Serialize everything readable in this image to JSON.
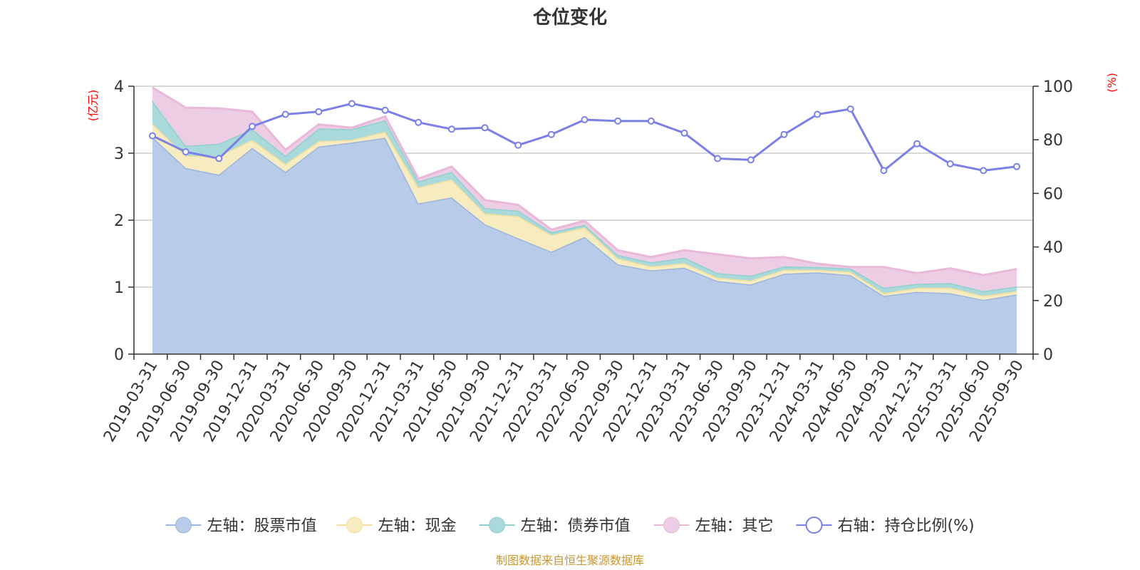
{
  "chart_data": {
    "type": "area",
    "title": "仓位变化",
    "source": "制图数据来自恒生聚源数据库",
    "left_axis": {
      "unit": "(亿元)",
      "ticks": [
        "0",
        "1",
        "2",
        "3",
        "4"
      ],
      "min": 0,
      "max": 4
    },
    "right_axis": {
      "unit": "(%)",
      "ticks": [
        "0",
        "20",
        "40",
        "60",
        "80",
        "100"
      ],
      "min": 0,
      "max": 100
    },
    "categories": [
      "2019-03-31",
      "2019-06-30",
      "2019-09-30",
      "2019-12-31",
      "2020-03-31",
      "2020-06-30",
      "2020-09-30",
      "2020-12-31",
      "2021-03-31",
      "2021-06-30",
      "2021-09-30",
      "2021-12-31",
      "2022-03-31",
      "2022-06-30",
      "2022-09-30",
      "2022-12-31",
      "2023-03-31",
      "2023-06-30",
      "2023-09-30",
      "2023-12-31",
      "2024-03-31",
      "2024-06-30",
      "2024-09-30",
      "2024-12-31",
      "2025-03-31",
      "2025-06-30",
      "2025-09-30"
    ],
    "series": [
      {
        "name": "左轴：股票市值",
        "axis": "left",
        "stack": true,
        "line_color": "#9bb5dd",
        "fill_color": "#b8cbe9",
        "values": [
          3.24,
          2.78,
          2.68,
          3.08,
          2.72,
          3.1,
          3.16,
          3.23,
          2.25,
          2.34,
          1.94,
          1.73,
          1.53,
          1.75,
          1.34,
          1.25,
          1.29,
          1.09,
          1.04,
          1.2,
          1.22,
          1.18,
          0.87,
          0.93,
          0.91,
          0.81,
          0.89
        ]
      },
      {
        "name": "左轴：现金",
        "axis": "left",
        "stack": true,
        "line_color": "#f2df9d",
        "fill_color": "#f7ecc0",
        "values": [
          0.2,
          0.18,
          0.28,
          0.12,
          0.12,
          0.08,
          0.04,
          0.09,
          0.24,
          0.27,
          0.16,
          0.33,
          0.25,
          0.14,
          0.09,
          0.06,
          0.07,
          0.05,
          0.06,
          0.06,
          0.04,
          0.05,
          0.04,
          0.06,
          0.08,
          0.06,
          0.05
        ]
      },
      {
        "name": "左轴：债券市值",
        "axis": "left",
        "stack": true,
        "line_color": "#8fd0cf",
        "fill_color": "#a9d9da",
        "values": [
          0.34,
          0.15,
          0.18,
          0.16,
          0.12,
          0.19,
          0.16,
          0.17,
          0.09,
          0.11,
          0.08,
          0.08,
          0.04,
          0.04,
          0.05,
          0.06,
          0.08,
          0.07,
          0.07,
          0.05,
          0.04,
          0.05,
          0.08,
          0.06,
          0.07,
          0.07,
          0.07
        ]
      },
      {
        "name": "左轴：其它",
        "axis": "left",
        "stack": true,
        "line_color": "#e9b8d8",
        "fill_color": "#eccde3",
        "values": [
          0.2,
          0.57,
          0.53,
          0.26,
          0.09,
          0.06,
          0.02,
          0.06,
          0.04,
          0.08,
          0.12,
          0.09,
          0.04,
          0.06,
          0.07,
          0.08,
          0.11,
          0.28,
          0.26,
          0.14,
          0.05,
          0.02,
          0.31,
          0.16,
          0.22,
          0.24,
          0.26
        ]
      },
      {
        "name": "右轴：持仓比例(%)",
        "axis": "right",
        "stack": false,
        "line_color": "#7b7fe8",
        "values": [
          81.5,
          75.5,
          73.0,
          85.0,
          89.5,
          90.5,
          93.5,
          91.0,
          86.5,
          84.0,
          84.5,
          78.0,
          82.0,
          87.5,
          87.0,
          87.0,
          82.5,
          73.0,
          72.5,
          82.0,
          89.5,
          91.5,
          68.5,
          78.5,
          71.0,
          68.5,
          70.0
        ]
      }
    ],
    "legend_position": "bottom-center",
    "grid": true
  }
}
